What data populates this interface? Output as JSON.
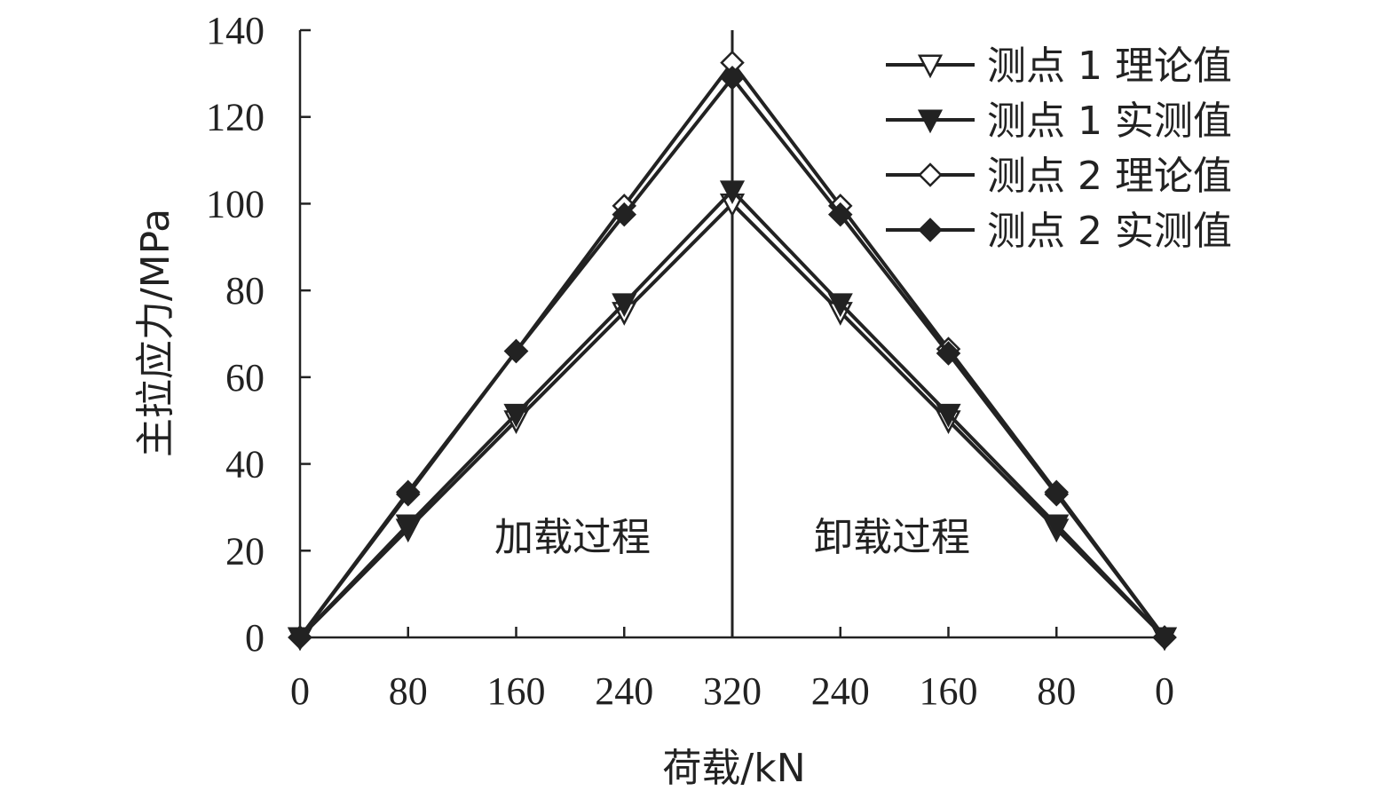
{
  "chart_data": {
    "type": "line",
    "xlabel": "荷载/kN",
    "ylabel": "主拉应力/MPa",
    "categories": [
      "0",
      "80",
      "160",
      "240",
      "320",
      "240",
      "160",
      "80",
      "0"
    ],
    "ylim": [
      0,
      140
    ],
    "yticks": [
      0,
      20,
      40,
      60,
      80,
      100,
      120,
      140
    ],
    "grid": false,
    "legend_position": "top-right",
    "series": [
      {
        "name": "测点 1 理论值",
        "marker": "triangle-down-open",
        "values": [
          0,
          25,
          50,
          75,
          100,
          75,
          50,
          25,
          0
        ]
      },
      {
        "name": "测点 1 实测值",
        "marker": "triangle-down-filled",
        "values": [
          0,
          26,
          51.5,
          77,
          103,
          77,
          51.5,
          26,
          0
        ]
      },
      {
        "name": "测点 2 理论值",
        "marker": "diamond-open",
        "values": [
          0,
          33,
          66,
          99.5,
          132.5,
          99.5,
          66.5,
          33.5,
          0
        ]
      },
      {
        "name": "测点 2 实测值",
        "marker": "diamond-filled",
        "values": [
          0,
          33.5,
          66,
          97.5,
          129,
          97.5,
          65.5,
          33,
          0
        ]
      }
    ],
    "annotations": [
      {
        "text": "加载过程"
      },
      {
        "text": "卸载过程"
      }
    ],
    "divider_at_index": 4
  }
}
